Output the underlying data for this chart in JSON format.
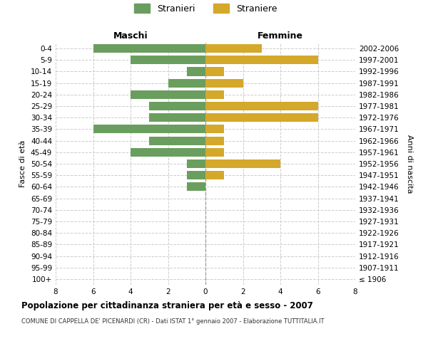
{
  "age_groups": [
    "100+",
    "95-99",
    "90-94",
    "85-89",
    "80-84",
    "75-79",
    "70-74",
    "65-69",
    "60-64",
    "55-59",
    "50-54",
    "45-49",
    "40-44",
    "35-39",
    "30-34",
    "25-29",
    "20-24",
    "15-19",
    "10-14",
    "5-9",
    "0-4"
  ],
  "birth_years": [
    "≤ 1906",
    "1907-1911",
    "1912-1916",
    "1917-1921",
    "1922-1926",
    "1927-1931",
    "1932-1936",
    "1937-1941",
    "1942-1946",
    "1947-1951",
    "1952-1956",
    "1957-1961",
    "1962-1966",
    "1967-1971",
    "1972-1976",
    "1977-1981",
    "1982-1986",
    "1987-1991",
    "1992-1996",
    "1997-2001",
    "2002-2006"
  ],
  "maschi": [
    0,
    0,
    0,
    0,
    0,
    0,
    0,
    0,
    1,
    1,
    1,
    4,
    3,
    6,
    3,
    3,
    4,
    2,
    1,
    4,
    6
  ],
  "femmine": [
    0,
    0,
    0,
    0,
    0,
    0,
    0,
    0,
    0,
    1,
    4,
    1,
    1,
    1,
    6,
    6,
    1,
    2,
    1,
    6,
    3
  ],
  "color_maschi": "#6a9e5e",
  "color_femmine": "#d4a82a",
  "title": "Popolazione per cittadinanza straniera per età e sesso - 2007",
  "subtitle": "COMUNE DI CAPPELLA DE' PICENARDI (CR) - Dati ISTAT 1° gennaio 2007 - Elaborazione TUTTITALIA.IT",
  "xlabel_left": "Maschi",
  "xlabel_right": "Femmine",
  "ylabel_left": "Fasce di età",
  "ylabel_right": "Anni di nascita",
  "legend_maschi": "Stranieri",
  "legend_femmine": "Straniere",
  "xlim": 8,
  "background_color": "#ffffff",
  "grid_color": "#cccccc"
}
